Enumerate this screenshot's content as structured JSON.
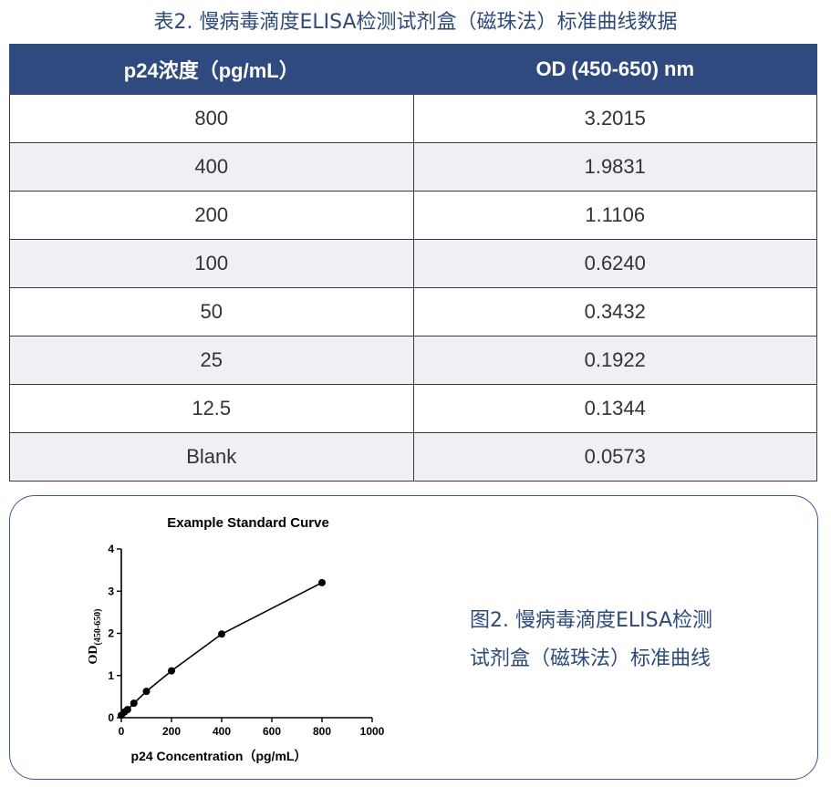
{
  "table_caption": "表2. 慢病毒滴度ELISA检测试剂盒（磁珠法）标准曲线数据",
  "table": {
    "headers": [
      "p24浓度（pg/mL）",
      "OD (450-650) nm"
    ],
    "rows": [
      [
        "800",
        "3.2015"
      ],
      [
        "400",
        "1.9831"
      ],
      [
        "200",
        "1.1106"
      ],
      [
        "100",
        "0.6240"
      ],
      [
        "50",
        "0.3432"
      ],
      [
        "25",
        "0.1922"
      ],
      [
        "12.5",
        "0.1344"
      ],
      [
        "Blank",
        "0.0573"
      ]
    ]
  },
  "figure_caption_line1": "图2. 慢病毒滴度ELISA检测",
  "figure_caption_line2": "试剂盒（磁珠法）标准曲线",
  "chart_data": {
    "type": "line",
    "title": "Example Standard Curve",
    "xlabel": "p24 Concentration（pg/mL）",
    "ylabel_main": "OD",
    "ylabel_sub": "(450-650)",
    "x": [
      0,
      12.5,
      25,
      50,
      100,
      200,
      400,
      800
    ],
    "y": [
      0.0573,
      0.1344,
      0.1922,
      0.3432,
      0.624,
      1.1106,
      1.9831,
      3.2015
    ],
    "xlim": [
      0,
      1000
    ],
    "ylim": [
      0,
      4
    ],
    "xticks": [
      "0",
      "200",
      "400",
      "600",
      "800",
      "1000"
    ],
    "yticks": [
      "0",
      "1",
      "2",
      "3",
      "4"
    ],
    "grid": false,
    "line_color": "#000000"
  }
}
